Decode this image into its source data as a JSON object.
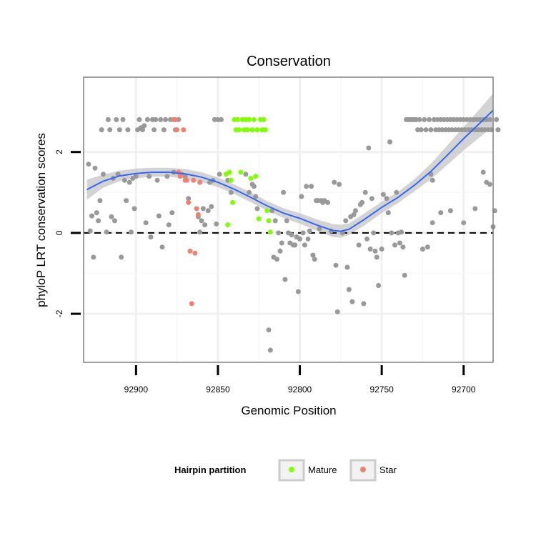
{
  "chart_data": {
    "type": "scatter",
    "title": "Conservation",
    "xlabel": "Genomic Position",
    "ylabel": "phyloP LRT conservation scores",
    "x_reversed": true,
    "xlim": [
      92932,
      92682
    ],
    "ylim": [
      -3.2,
      3.85
    ],
    "x_ticks": [
      92900,
      92850,
      92800,
      92750,
      92700
    ],
    "x_tick_labels": [
      "92900",
      "92850",
      "92800",
      "92750",
      "92700"
    ],
    "y_ticks": [
      -2,
      0,
      2
    ],
    "y_tick_labels": [
      "-2",
      "0",
      "2"
    ],
    "grid": true,
    "reference_line": {
      "y": 0,
      "style": "dashed"
    },
    "colors": {
      "other": "#999999",
      "Mature": "#7fff00",
      "Star": "#f08070",
      "smooth": "#3366ff",
      "band": "#c8c8c8"
    },
    "legend": {
      "title": "Hairpin partition",
      "position": "bottom",
      "entries": [
        "Mature",
        "Star"
      ]
    },
    "series": [
      {
        "name": "Other",
        "points": [
          [
            92929,
            1.7
          ],
          [
            92928,
            0.05
          ],
          [
            92927,
            0.42
          ],
          [
            92926,
            -0.6
          ],
          [
            92925,
            1.6
          ],
          [
            92924,
            0.5
          ],
          [
            92923,
            0.3
          ],
          [
            92922,
            0.8
          ],
          [
            92921,
            2.55
          ],
          [
            92920,
            1.45
          ],
          [
            92918,
            0.02
          ],
          [
            92917,
            2.8
          ],
          [
            92916,
            2.55
          ],
          [
            92915,
            0.4
          ],
          [
            92914,
            1.35
          ],
          [
            92913,
            0.3
          ],
          [
            92912,
            2.8
          ],
          [
            92911,
            1.45
          ],
          [
            92910,
            2.55
          ],
          [
            92909,
            -0.6
          ],
          [
            92908,
            2.8
          ],
          [
            92907,
            1.3
          ],
          [
            92906,
            0.8
          ],
          [
            92905,
            2.55
          ],
          [
            92904,
            1.25
          ],
          [
            92903,
            0.02
          ],
          [
            92902,
            1.35
          ],
          [
            92901,
            0.6
          ],
          [
            92900,
            1.4
          ],
          [
            92899,
            2.55
          ],
          [
            92898,
            2.8
          ],
          [
            92897,
            2.6
          ],
          [
            92896,
            2.55
          ],
          [
            92895,
            2.65
          ],
          [
            92894,
            0.25
          ],
          [
            92893,
            2.8
          ],
          [
            92892,
            1.4
          ],
          [
            92891,
            -0.1
          ],
          [
            92890,
            2.8
          ],
          [
            92889,
            2.55
          ],
          [
            92888,
            2.8
          ],
          [
            92887,
            1.3
          ],
          [
            92886,
            0.42
          ],
          [
            92885,
            2.8
          ],
          [
            92884,
            -0.35
          ],
          [
            92883,
            2.55
          ],
          [
            92882,
            2.8
          ],
          [
            92881,
            1.4
          ],
          [
            92880,
            0.2
          ],
          [
            92879,
            2.8
          ],
          [
            92878,
            0.5
          ],
          [
            92877,
            1.5
          ],
          [
            92876,
            2.55
          ],
          [
            92874,
            2.8
          ],
          [
            92870,
            1.4
          ],
          [
            92868,
            0.85
          ],
          [
            92862,
            0.4
          ],
          [
            92861,
            0.02
          ],
          [
            92860,
            0.3
          ],
          [
            92859,
            0.6
          ],
          [
            92858,
            0.2
          ],
          [
            92856,
            0.55
          ],
          [
            92855,
            1.25
          ],
          [
            92854,
            0.65
          ],
          [
            92853,
            1.3
          ],
          [
            92852,
            2.8
          ],
          [
            92851,
            0.22
          ],
          [
            92850,
            2.8
          ],
          [
            92849,
            1.45
          ],
          [
            92848,
            2.8
          ],
          [
            92844,
            1.3
          ],
          [
            92842,
            1.0
          ],
          [
            92833,
            1.45
          ],
          [
            92831,
            1.0
          ],
          [
            92829,
            1.2
          ],
          [
            92828,
            1.15
          ],
          [
            92827,
            0.9
          ],
          [
            92826,
            0.6
          ],
          [
            92819,
            -2.4
          ],
          [
            92818,
            -2.9
          ],
          [
            92817,
            0.55
          ],
          [
            92816,
            -0.6
          ],
          [
            92815,
            0.3
          ],
          [
            92814,
            -0.65
          ],
          [
            92813,
            0.0
          ],
          [
            92812,
            -0.45
          ],
          [
            92811,
            -0.25
          ],
          [
            92810,
            1.0
          ],
          [
            92809,
            -1.15
          ],
          [
            92808,
            0.3
          ],
          [
            92807,
            0.0
          ],
          [
            92806,
            -0.25
          ],
          [
            92805,
            -0.05
          ],
          [
            92804,
            -0.3
          ],
          [
            92803,
            -0.3
          ],
          [
            92802,
            -0.1
          ],
          [
            92801,
            -1.45
          ],
          [
            92800,
            -0.15
          ],
          [
            92799,
            0.9
          ],
          [
            92798,
            0.0
          ],
          [
            92797,
            -0.3
          ],
          [
            92796,
            1.15
          ],
          [
            92795,
            -0.15
          ],
          [
            92794,
            0.05
          ],
          [
            92793,
            1.15
          ],
          [
            92792,
            -0.55
          ],
          [
            92791,
            -0.65
          ],
          [
            92790,
            0.8
          ],
          [
            92789,
            0.8
          ],
          [
            92788,
            0.1
          ],
          [
            92787,
            0.8
          ],
          [
            92786,
            0.75
          ],
          [
            92785,
            0.8
          ],
          [
            92783,
            0.75
          ],
          [
            92781,
            0.05
          ],
          [
            92779,
            1.25
          ],
          [
            92778,
            -0.8
          ],
          [
            92777,
            -1.95
          ],
          [
            92776,
            1.2
          ],
          [
            92774,
            0.0
          ],
          [
            92772,
            0.3
          ],
          [
            92771,
            -0.85
          ],
          [
            92770,
            -1.4
          ],
          [
            92769,
            0.4
          ],
          [
            92768,
            -1.7
          ],
          [
            92767,
            0.45
          ],
          [
            92766,
            0.55
          ],
          [
            92764,
            -0.3
          ],
          [
            92763,
            0.7
          ],
          [
            92762,
            0.75
          ],
          [
            92761,
            -1.75
          ],
          [
            92760,
            1.0
          ],
          [
            92759,
            -0.15
          ],
          [
            92758,
            2.1
          ],
          [
            92757,
            -0.4
          ],
          [
            92756,
            0.85
          ],
          [
            92755,
            0.0
          ],
          [
            92754,
            -0.45
          ],
          [
            92753,
            -0.6
          ],
          [
            92752,
            -1.3
          ],
          [
            92750,
            -0.4
          ],
          [
            92749,
            0.95
          ],
          [
            92747,
            0.85
          ],
          [
            92746,
            0.5
          ],
          [
            92745,
            2.25
          ],
          [
            92744,
            0.0
          ],
          [
            92742,
            -0.3
          ],
          [
            92741,
            1.0
          ],
          [
            92740,
            0.0
          ],
          [
            92739,
            -0.25
          ],
          [
            92738,
            0.02
          ],
          [
            92737,
            -0.35
          ],
          [
            92736,
            -1.05
          ],
          [
            92735,
            2.8
          ],
          [
            92734,
            2.8
          ],
          [
            92733,
            2.8
          ],
          [
            92732,
            2.8
          ],
          [
            92731,
            2.8
          ],
          [
            92730,
            2.8
          ],
          [
            92729,
            2.8
          ],
          [
            92728,
            2.55
          ],
          [
            92727,
            2.8
          ],
          [
            92726,
            2.55
          ],
          [
            92725,
            -0.4
          ],
          [
            92724,
            2.8
          ],
          [
            92723,
            2.55
          ],
          [
            92722,
            -0.35
          ],
          [
            92721,
            2.8
          ],
          [
            92720,
            2.55
          ],
          [
            92719,
            0.25
          ],
          [
            92718,
            2.8
          ],
          [
            92717,
            2.55
          ],
          [
            92716,
            2.8
          ],
          [
            92715,
            2.55
          ],
          [
            92714,
            2.8
          ],
          [
            92713,
            2.55
          ],
          [
            92712,
            2.8
          ],
          [
            92711,
            2.55
          ],
          [
            92710,
            2.8
          ],
          [
            92709,
            2.55
          ],
          [
            92708,
            2.8
          ],
          [
            92707,
            2.55
          ],
          [
            92706,
            2.8
          ],
          [
            92705,
            2.55
          ],
          [
            92704,
            2.8
          ],
          [
            92703,
            2.55
          ],
          [
            92702,
            2.8
          ],
          [
            92701,
            2.55
          ],
          [
            92700,
            2.8
          ],
          [
            92699,
            2.55
          ],
          [
            92698,
            2.8
          ],
          [
            92697,
            2.55
          ],
          [
            92696,
            2.8
          ],
          [
            92695,
            2.55
          ],
          [
            92694,
            2.8
          ],
          [
            92693,
            2.55
          ],
          [
            92692,
            2.8
          ],
          [
            92691,
            2.55
          ],
          [
            92690,
            2.8
          ],
          [
            92689,
            2.55
          ],
          [
            92688,
            2.8
          ],
          [
            92687,
            2.55
          ],
          [
            92686,
            2.8
          ],
          [
            92685,
            2.55
          ],
          [
            92684,
            2.8
          ],
          [
            92683,
            2.55
          ],
          [
            92720,
            1.45
          ],
          [
            92719,
            1.3
          ],
          [
            92714,
            0.5
          ],
          [
            92708,
            0.55
          ],
          [
            92700,
            0.25
          ],
          [
            92693,
            0.6
          ],
          [
            92688,
            1.5
          ],
          [
            92686,
            1.25
          ],
          [
            92684,
            1.2
          ],
          [
            92682,
            0.15
          ],
          [
            92681,
            0.55
          ],
          [
            92680,
            2.8
          ],
          [
            92679,
            2.55
          ]
        ]
      },
      {
        "name": "Mature",
        "points": [
          [
            92845,
            1.45
          ],
          [
            92844,
            0.2
          ],
          [
            92843,
            1.5
          ],
          [
            92842,
            1.3
          ],
          [
            92841,
            0.75
          ],
          [
            92840,
            2.8
          ],
          [
            92839,
            2.55
          ],
          [
            92838,
            2.8
          ],
          [
            92837,
            2.55
          ],
          [
            92836,
            1.5
          ],
          [
            92835,
            2.8
          ],
          [
            92834,
            2.55
          ],
          [
            92833,
            2.8
          ],
          [
            92832,
            2.55
          ],
          [
            92831,
            2.8
          ],
          [
            92830,
            1.35
          ],
          [
            92829,
            2.55
          ],
          [
            92828,
            2.8
          ],
          [
            92827,
            1.4
          ],
          [
            92826,
            2.55
          ],
          [
            92825,
            0.35
          ],
          [
            92824,
            2.8
          ],
          [
            92823,
            2.55
          ],
          [
            92822,
            2.8
          ],
          [
            92821,
            2.55
          ],
          [
            92820,
            0.55
          ],
          [
            92819,
            0.3
          ],
          [
            92818,
            0.02
          ]
        ]
      },
      {
        "name": "Star",
        "points": [
          [
            92877,
            2.8
          ],
          [
            92876,
            2.8
          ],
          [
            92875,
            2.55
          ],
          [
            92874,
            1.5
          ],
          [
            92873,
            1.4
          ],
          [
            92872,
            1.45
          ],
          [
            92871,
            2.55
          ],
          [
            92870,
            1.3
          ],
          [
            92869,
            1.3
          ],
          [
            92868,
            0.75
          ],
          [
            92867,
            -0.45
          ],
          [
            92866,
            -1.75
          ],
          [
            92865,
            1.3
          ],
          [
            92864,
            -0.5
          ],
          [
            92863,
            0.6
          ],
          [
            92862,
            0.45
          ],
          [
            92861,
            1.25
          ]
        ]
      }
    ],
    "smooth": {
      "x": [
        92930,
        92920,
        92910,
        92900,
        92890,
        92880,
        92870,
        92860,
        92850,
        92840,
        92830,
        92820,
        92810,
        92800,
        92790,
        92780,
        92775,
        92770,
        92760,
        92750,
        92740,
        92730,
        92720,
        92710,
        92700,
        92690,
        92682
      ],
      "y": [
        1.07,
        1.28,
        1.41,
        1.47,
        1.5,
        1.5,
        1.46,
        1.38,
        1.25,
        1.08,
        0.88,
        0.67,
        0.49,
        0.36,
        0.2,
        0.06,
        0.04,
        0.09,
        0.35,
        0.63,
        0.88,
        1.18,
        1.52,
        1.92,
        2.33,
        2.72,
        3.03
      ],
      "lower": [
        0.82,
        1.12,
        1.28,
        1.35,
        1.39,
        1.39,
        1.34,
        1.26,
        1.13,
        0.96,
        0.76,
        0.55,
        0.37,
        0.23,
        0.06,
        -0.1,
        -0.12,
        -0.05,
        0.2,
        0.49,
        0.74,
        1.03,
        1.33,
        1.68,
        2.04,
        2.37,
        2.62
      ],
      "upper": [
        1.32,
        1.44,
        1.54,
        1.59,
        1.61,
        1.61,
        1.58,
        1.5,
        1.37,
        1.2,
        1.0,
        0.79,
        0.61,
        0.49,
        0.34,
        0.22,
        0.2,
        0.23,
        0.5,
        0.77,
        1.02,
        1.33,
        1.71,
        2.16,
        2.62,
        3.07,
        3.45
      ]
    }
  }
}
